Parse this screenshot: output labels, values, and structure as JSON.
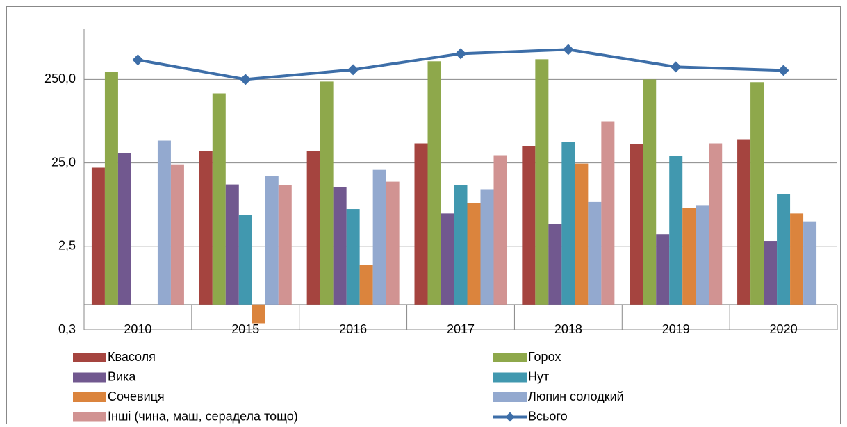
{
  "chart_data": {
    "type": "bar",
    "categories": [
      "2010",
      "2015",
      "2016",
      "2017",
      "2018",
      "2019",
      "2020"
    ],
    "series": [
      {
        "name": "Квасоля",
        "color": "#a5443f",
        "values": [
          21.9,
          34.7,
          34.7,
          42.8,
          39.6,
          42,
          48
        ]
      },
      {
        "name": "Горох",
        "color": "#8ea84b",
        "values": [
          309,
          170,
          236,
          412,
          436,
          250,
          232
        ]
      },
      {
        "name": "Вика",
        "color": "#71588f",
        "values": [
          32.7,
          13.8,
          12.8,
          6.2,
          4.6,
          3.5,
          2.9
        ]
      },
      {
        "name": "Нут",
        "color": "#4198af",
        "values": [
          null,
          5.9,
          7.0,
          13.5,
          44.5,
          30.3,
          10.5
        ]
      },
      {
        "name": "Сочевиця",
        "color": "#db843d",
        "values": [
          null,
          0.3,
          1.49,
          8.2,
          24.5,
          7.2,
          6.2
        ]
      },
      {
        "name": "Люпин солодкий",
        "color": "#93a9cf",
        "values": [
          46.2,
          17.4,
          20.6,
          12.1,
          8.5,
          7.8,
          4.9
        ]
      },
      {
        "name": "Інші (чина, маш, серадела тощо)",
        "color": "#d19392",
        "values": [
          24,
          13.5,
          14.9,
          30.9,
          79,
          42.8,
          null
        ]
      },
      {
        "name": "Всього",
        "color": "#3d6ea8",
        "type": "line",
        "values": [
          428,
          250,
          327,
          508,
          570,
          353,
          321
        ]
      }
    ],
    "ylim": [
      0.25,
      1000
    ],
    "yticks": [
      {
        "value": 0.25,
        "label": "0,3"
      },
      {
        "value": 2.5,
        "label": "2,5"
      },
      {
        "value": 25,
        "label": "25,0"
      },
      {
        "value": 250,
        "label": "250,0"
      }
    ],
    "log_scale": true,
    "grid": true,
    "xaxis_at": 0.5,
    "legend": "bottom"
  }
}
